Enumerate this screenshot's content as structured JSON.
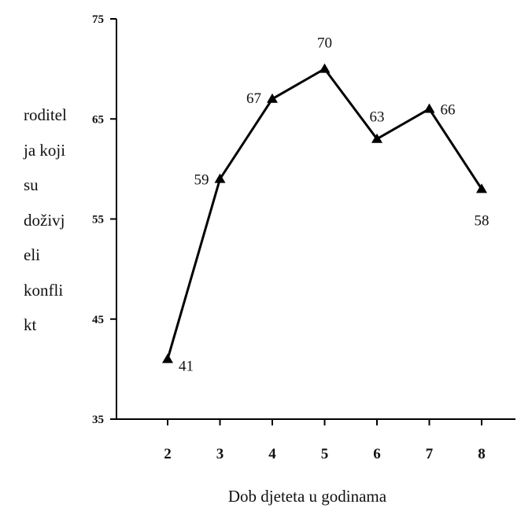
{
  "chart_data": {
    "type": "line",
    "x": [
      2,
      3,
      4,
      5,
      6,
      7,
      8
    ],
    "series": [
      {
        "values": [
          41,
          59,
          67,
          70,
          63,
          66,
          58
        ]
      }
    ],
    "data_labels": [
      "41",
      "59",
      "67",
      "70",
      "63",
      "66",
      "58"
    ],
    "title": "",
    "xlabel": "Dob djeteta u godinama",
    "ylabel_lines": [
      "roditel",
      "ja koji",
      "su",
      "doživj",
      "eli",
      "konfli",
      "kt"
    ],
    "ylim": [
      35,
      75
    ],
    "yticks": [
      "35",
      "45",
      "55",
      "65",
      "75"
    ],
    "xticks": [
      "2",
      "3",
      "4",
      "5",
      "6",
      "7",
      "8"
    ],
    "marker": "triangle",
    "grid": false,
    "line_color": "#000000"
  }
}
